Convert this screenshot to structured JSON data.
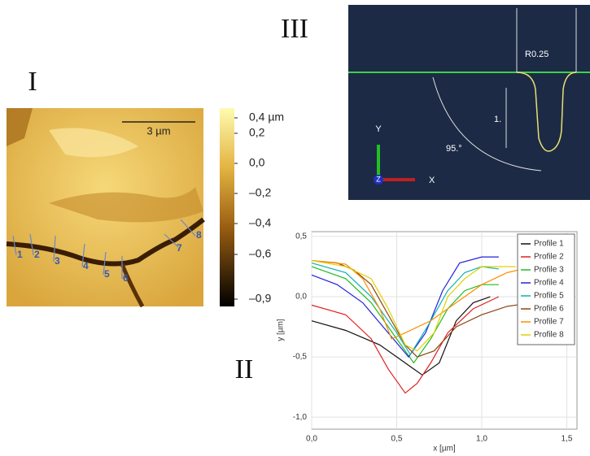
{
  "panels": {
    "afm": {
      "label": "I",
      "scale_bar": "3 µm",
      "colorbar_labels": [
        "0,4 µm",
        "0,2",
        "0,0",
        "–0,2",
        "–0,4",
        "–0,6",
        "–0,9"
      ],
      "profile_labels": [
        "1",
        "2",
        "3",
        "4",
        "5",
        "6",
        "7",
        "8"
      ]
    },
    "sketch": {
      "label": "III",
      "radius": "R0.25",
      "depth": "1.",
      "angle": "95.°",
      "axis_y": "Y",
      "axis_z": "Z",
      "axis_x": "X"
    },
    "profiles": {
      "label": "II"
    }
  },
  "chart_data": {
    "type": "line",
    "x_label": "x [µm]",
    "y_label": "y [µm]",
    "xlim": [
      0,
      1.56
    ],
    "ylim": [
      -1.1,
      0.54
    ],
    "xticks": [
      {
        "value": 0,
        "label": "0,0"
      },
      {
        "value": 0.5,
        "label": "0,5"
      },
      {
        "value": 1,
        "label": "1,0"
      },
      {
        "value": 1.5,
        "label": "1,5"
      }
    ],
    "yticks": [
      {
        "value": -1,
        "label": "-1,0"
      },
      {
        "value": -0.5,
        "label": "-0,5"
      },
      {
        "value": 0,
        "label": "0,0"
      },
      {
        "value": 0.5,
        "label": "0,5"
      }
    ],
    "grid": true,
    "legend": "upper right",
    "series": [
      {
        "name": "Profile 1",
        "color": "#111111",
        "x": [
          0,
          0.2,
          0.4,
          0.55,
          0.65,
          0.75,
          0.85,
          0.95,
          1.05
        ],
        "values": [
          -0.2,
          -0.28,
          -0.4,
          -0.55,
          -0.65,
          -0.55,
          -0.2,
          -0.05,
          0.0
        ]
      },
      {
        "name": "Profile 2",
        "color": "#e02020",
        "x": [
          0,
          0.2,
          0.35,
          0.45,
          0.55,
          0.62,
          0.7,
          0.8,
          0.95,
          1.1
        ],
        "values": [
          -0.07,
          -0.15,
          -0.35,
          -0.6,
          -0.8,
          -0.72,
          -0.55,
          -0.3,
          -0.1,
          0.0
        ]
      },
      {
        "name": "Profile 3",
        "color": "#22bb22",
        "x": [
          0,
          0.2,
          0.35,
          0.5,
          0.6,
          0.7,
          0.8,
          0.9,
          1.0,
          1.1
        ],
        "values": [
          0.25,
          0.15,
          -0.05,
          -0.35,
          -0.55,
          -0.35,
          -0.1,
          0.05,
          0.1,
          0.1
        ]
      },
      {
        "name": "Profile 4",
        "color": "#2222dd",
        "x": [
          0,
          0.15,
          0.3,
          0.45,
          0.57,
          0.67,
          0.77,
          0.87,
          1.0,
          1.1
        ],
        "values": [
          0.18,
          0.1,
          -0.05,
          -0.3,
          -0.5,
          -0.3,
          0.05,
          0.28,
          0.33,
          0.33
        ]
      },
      {
        "name": "Profile 5",
        "color": "#10b0b0",
        "x": [
          0,
          0.2,
          0.35,
          0.5,
          0.58,
          0.68,
          0.8,
          0.9,
          1.0,
          1.1
        ],
        "values": [
          0.28,
          0.2,
          0.0,
          -0.3,
          -0.48,
          -0.25,
          0.05,
          0.2,
          0.25,
          0.23
        ]
      },
      {
        "name": "Profile 6",
        "color": "#8b4513",
        "x": [
          0,
          0.15,
          0.25,
          0.35,
          0.45,
          0.55,
          0.62,
          0.72,
          0.85,
          1.0,
          1.15,
          1.3
        ],
        "values": [
          0.3,
          0.28,
          0.22,
          0.1,
          -0.15,
          -0.4,
          -0.5,
          -0.45,
          -0.25,
          -0.15,
          -0.08,
          -0.05
        ]
      },
      {
        "name": "Profile 7",
        "color": "#ff8c00",
        "x": [
          0,
          0.2,
          0.3,
          0.4,
          0.47,
          0.55,
          0.7,
          0.85,
          1.0,
          1.15,
          1.3
        ],
        "values": [
          0.3,
          0.27,
          0.15,
          -0.1,
          -0.35,
          -0.3,
          -0.2,
          -0.05,
          0.1,
          0.2,
          0.25
        ]
      },
      {
        "name": "Profile 8",
        "color": "#e0d000",
        "x": [
          0,
          0.2,
          0.35,
          0.45,
          0.55,
          0.62,
          0.72,
          0.8,
          0.9,
          1.0,
          1.1,
          1.2
        ],
        "values": [
          0.3,
          0.25,
          0.15,
          -0.1,
          -0.4,
          -0.45,
          -0.3,
          0.0,
          0.15,
          0.25,
          0.25,
          0.25
        ]
      }
    ]
  }
}
